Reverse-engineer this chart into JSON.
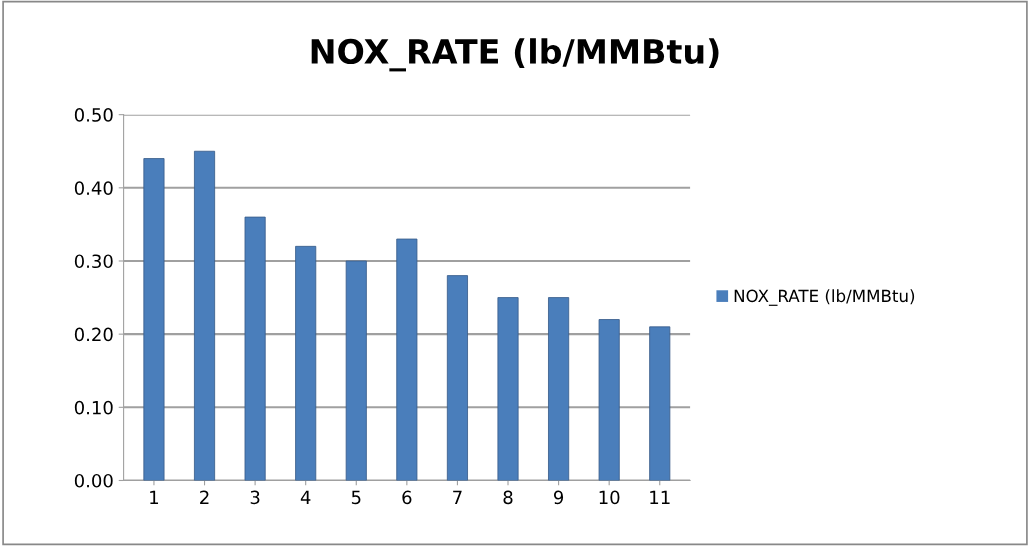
{
  "chart_data": {
    "type": "bar",
    "title": "NOX_RATE (lb/MMBtu)",
    "categories": [
      "1",
      "2",
      "3",
      "4",
      "5",
      "6",
      "7",
      "8",
      "9",
      "10",
      "11"
    ],
    "series": [
      {
        "name": "NOX_RATE (lb/MMBtu)",
        "color": "#4a7ebb",
        "values": [
          0.44,
          0.45,
          0.36,
          0.32,
          0.3,
          0.33,
          0.28,
          0.25,
          0.25,
          0.22,
          0.21
        ]
      }
    ],
    "ylim": [
      0,
      0.5
    ],
    "yticks": [
      {
        "value": 0,
        "label": "0.00"
      },
      {
        "value": 0.1,
        "label": "0.10"
      },
      {
        "value": 0.2,
        "label": "0.20"
      },
      {
        "value": 0.3,
        "label": "0.30"
      },
      {
        "value": 0.4,
        "label": "0.40"
      },
      {
        "value": 0.5,
        "label": "0.50"
      }
    ],
    "grid": "y",
    "legend": "right"
  }
}
